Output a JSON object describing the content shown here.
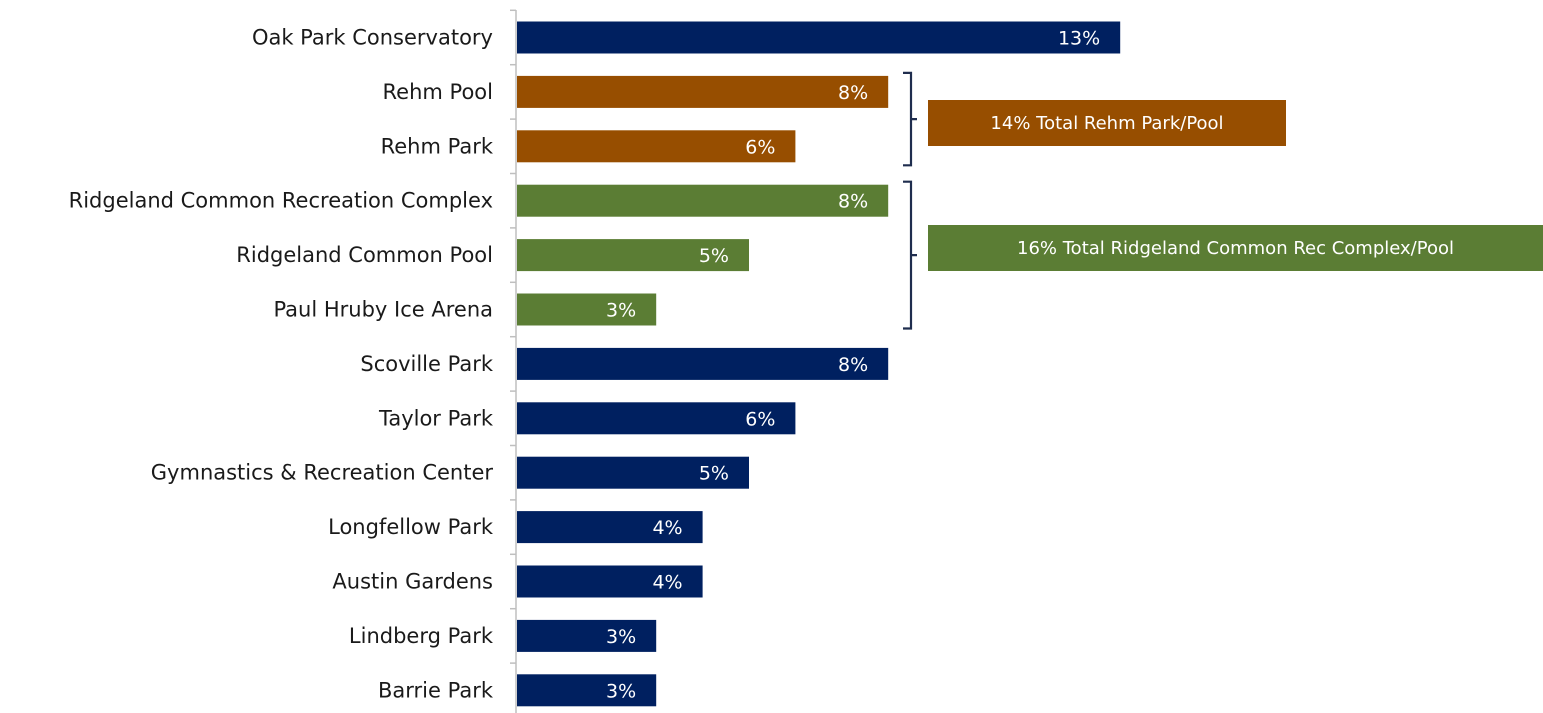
{
  "chart_data": {
    "type": "bar",
    "orientation": "horizontal",
    "title": "",
    "xlabel": "",
    "ylabel": "",
    "xlim": [
      0,
      13
    ],
    "grid": false,
    "legend": "none",
    "categories": [
      "Oak Park Conservatory",
      "Rehm Pool",
      "Rehm Park",
      "Ridgeland Common Recreation Complex",
      "Ridgeland Common Pool",
      "Paul Hruby Ice Arena",
      "Scoville Park",
      "Taylor Park",
      "Gymnastics & Recreation Center",
      "Longfellow Park",
      "Austin Gardens",
      "Lindberg Park",
      "Barrie Park"
    ],
    "values": [
      13,
      8,
      6,
      8,
      5,
      3,
      8,
      6,
      5,
      4,
      4,
      3,
      3
    ],
    "value_labels": [
      "13%",
      "8%",
      "6%",
      "8%",
      "5%",
      "3%",
      "8%",
      "6%",
      "5%",
      "4%",
      "4%",
      "3%",
      "3%"
    ],
    "bar_colors": [
      "#002060",
      "#974E00",
      "#974E00",
      "#5B7D34",
      "#5B7D34",
      "#5B7D34",
      "#002060",
      "#002060",
      "#002060",
      "#002060",
      "#002060",
      "#002060",
      "#002060"
    ],
    "annotations": [
      {
        "text": "14% Total Rehm Park/Pool",
        "from_index": 1,
        "to_index": 2,
        "color": "#974E00"
      },
      {
        "text": "16% Total Ridgeland Common Rec Complex/Pool",
        "from_index": 3,
        "to_index": 5,
        "color": "#5B7D34"
      }
    ]
  },
  "colors": {
    "default_bar": "#002060",
    "rehm": "#974E00",
    "ridgeland": "#5B7D34",
    "bracket": "#1F2D4E",
    "axis": "#BFBFBF"
  }
}
